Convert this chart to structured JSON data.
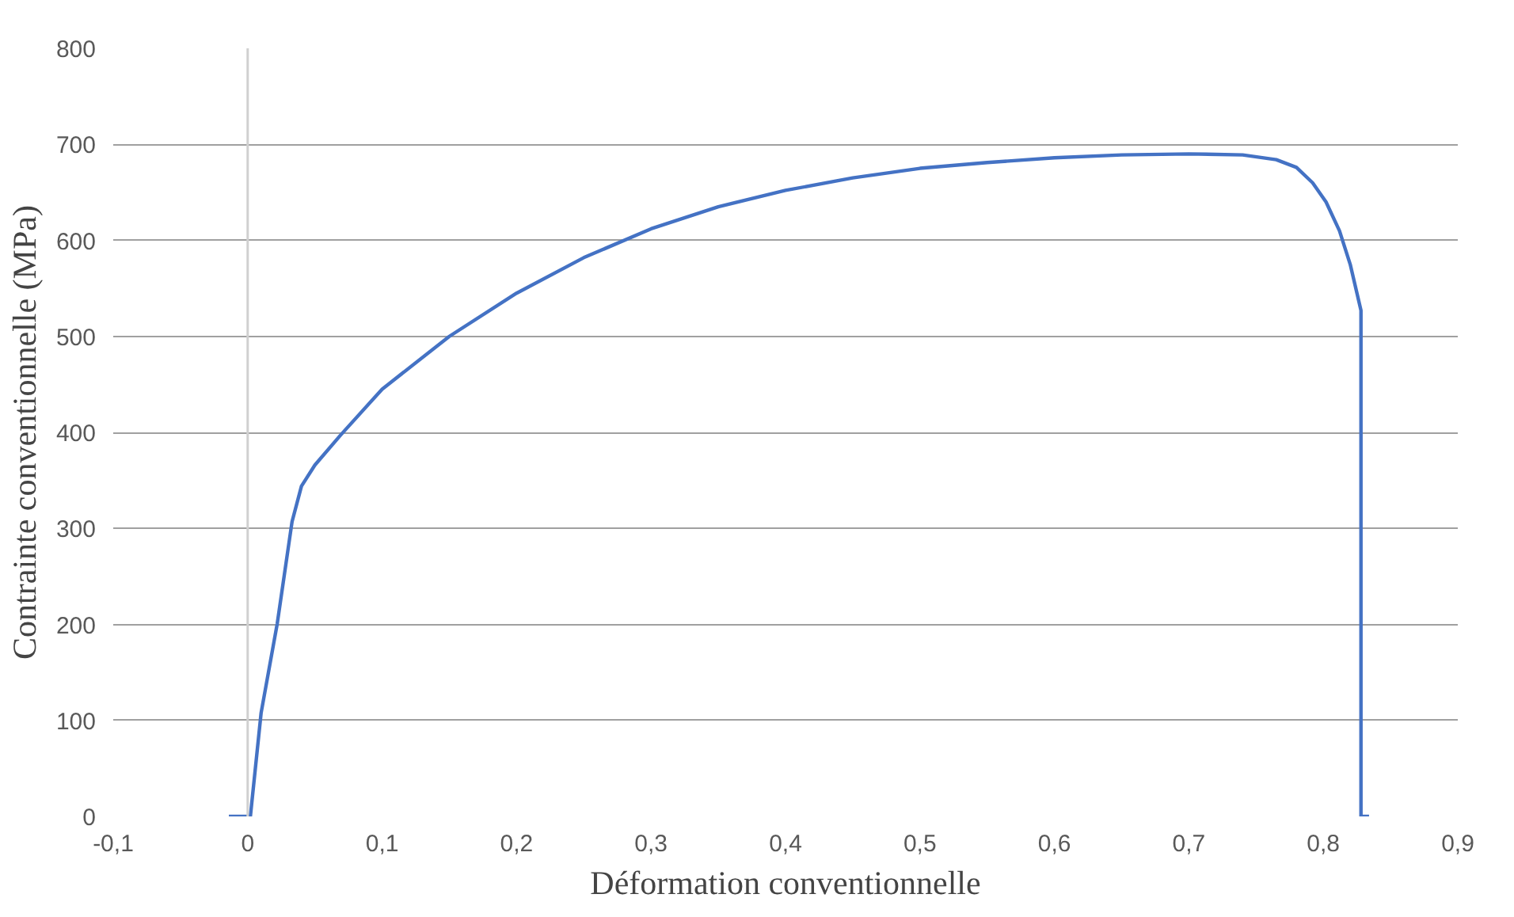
{
  "chart_data": {
    "type": "line",
    "xlabel": "Déformation conventionnelle",
    "ylabel": "Contrainte conventionnelle (MPa)",
    "x": [
      -0.014,
      0.002,
      0.01,
      0.022,
      0.033,
      0.04,
      0.05,
      0.069,
      0.1,
      0.15,
      0.2,
      0.25,
      0.3,
      0.35,
      0.4,
      0.45,
      0.5,
      0.55,
      0.6,
      0.65,
      0.7,
      0.74,
      0.765,
      0.78,
      0.792,
      0.802,
      0.812,
      0.82,
      0.828,
      0.828,
      0.834
    ],
    "series": [
      {
        "color": "#4472c4",
        "values": [
          0,
          0,
          108,
          201,
          307,
          344,
          366,
          397,
          445,
          500,
          545,
          582,
          612,
          635,
          652,
          665,
          675,
          681,
          686,
          689,
          690,
          689,
          684,
          676,
          660,
          640,
          610,
          575,
          527,
          0,
          0
        ]
      }
    ],
    "xlim": [
      -0.1,
      0.9
    ],
    "ylim": [
      0,
      800
    ],
    "xticks": [
      {
        "value": -0.1,
        "label": "-0,1"
      },
      0,
      {
        "value": 0.1,
        "label": "0,1"
      },
      {
        "value": 0.2,
        "label": "0,2"
      },
      {
        "value": 0.3,
        "label": "0,3"
      },
      {
        "value": 0.4,
        "label": "0,4"
      },
      {
        "value": 0.5,
        "label": "0,5"
      },
      {
        "value": 0.6,
        "label": "0,6"
      },
      {
        "value": 0.7,
        "label": "0,7"
      },
      {
        "value": 0.8,
        "label": "0,8"
      },
      {
        "value": 0.9,
        "label": "0,9"
      }
    ],
    "yticks": [
      0,
      100,
      200,
      300,
      400,
      500,
      600,
      700,
      800
    ],
    "grid": "y",
    "marker": "none",
    "line_style": "solid"
  }
}
